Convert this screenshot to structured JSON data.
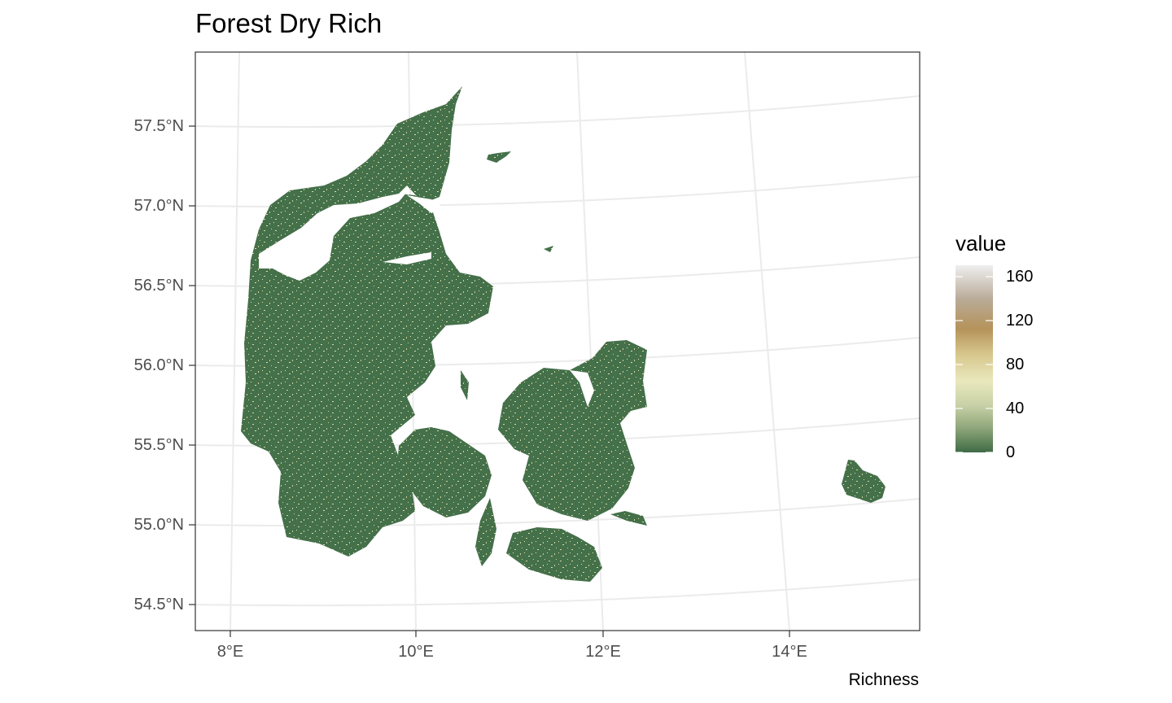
{
  "map": {
    "title": "Forest Dry Rich",
    "caption": "Richness",
    "y_axis": {
      "ticks": [
        "57.5°N",
        "57.0°N",
        "56.5°N",
        "56.0°N",
        "55.5°N",
        "55.0°N",
        "54.5°N"
      ]
    },
    "x_axis": {
      "ticks": [
        "8°E",
        "10°E",
        "12°E",
        "14°E"
      ]
    },
    "legend": {
      "title": "value",
      "labels": [
        "160",
        "120",
        "80",
        "40",
        "0"
      ],
      "range": [
        0,
        170
      ],
      "colors": [
        "#3f6b45",
        "#e9e8bd",
        "#b5935a",
        "#efefef"
      ]
    },
    "colors": {
      "land": "#44704a",
      "speckle": "#d8d7a0",
      "grid": "#ebebeb",
      "frame": "#333333",
      "background": "#ffffff"
    },
    "extent": {
      "lon": [
        7.6,
        15.4
      ],
      "lat": [
        54.35,
        57.95
      ]
    }
  }
}
